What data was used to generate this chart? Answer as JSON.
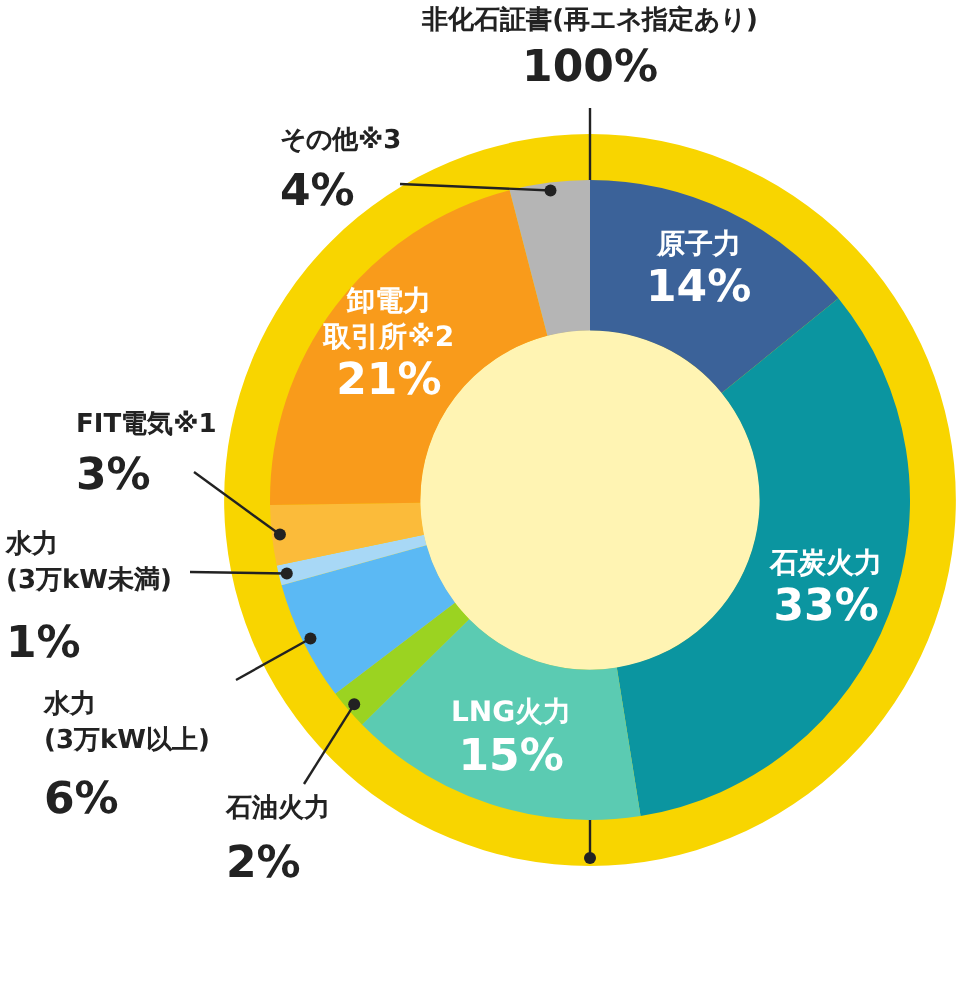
{
  "chart_data": [
    {
      "type": "donut",
      "categories": [
        "原子力",
        "石炭火力",
        "LNG火力",
        "石油火力",
        "水力(3万kW以上)",
        "水力(3万kW未満)",
        "FIT電気※1",
        "卸電力取引所※2",
        "その他※3"
      ],
      "values": [
        14,
        33,
        15,
        2,
        6,
        1,
        3,
        21,
        4
      ],
      "value_labels": [
        "14%",
        "33%",
        "15%",
        "2%",
        "6%",
        "1%",
        "3%",
        "21%",
        "4%"
      ],
      "colors": [
        "#3b6299",
        "#0b95a0",
        "#5bcbb2",
        "#9bd321",
        "#5bb9f4",
        "#a8d8f6",
        "#fbbb3a",
        "#f99b1b",
        "#b5b5b5"
      ],
      "legend": false
    },
    {
      "type": "pie",
      "categories": [
        "非化石証書(再エネ指定あり)"
      ],
      "values": [
        100
      ],
      "value_labels": [
        "100%"
      ],
      "colors": [
        "#f8d500"
      ],
      "legend": false
    }
  ]
}
